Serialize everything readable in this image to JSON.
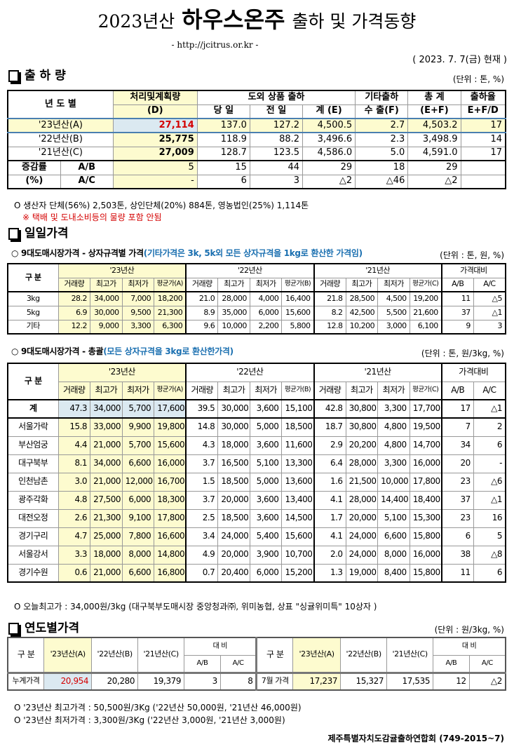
{
  "header": {
    "title_year": "2023년산",
    "title_main": "하우스온주",
    "title_rest": "출하 및 가격동향",
    "url": "- http://jcitrus.or.kr -",
    "date": "( 2023.  7.  7(금) 현재 )"
  },
  "shipment": {
    "section": "출 하 량",
    "unit": "(단위 : 톤, %)",
    "headers": {
      "year": "년 도 별",
      "plan": "처리및계획량",
      "plan_sub": "(D)",
      "outside": "도외 상품 출하",
      "today": "당 일",
      "prev": "전 일",
      "sum": "계 (E)",
      "other": "기타출하",
      "export": "수 출(F)",
      "total": "총   계",
      "total_sub": "(E+F)",
      "rate": "출하율",
      "rate_sub": "E+F/D"
    },
    "rows": [
      [
        "'23년산(A)",
        "27,114",
        "137.0",
        "127.2",
        "4,500.5",
        "2.7",
        "4,503.2",
        "17"
      ],
      [
        "'22년산(B)",
        "25,775",
        "118.9",
        "88.2",
        "3,496.6",
        "2.3",
        "3,498.9",
        "14"
      ],
      [
        "'21년산(C)",
        "27,009",
        "128.7",
        "123.5",
        "4,586.0",
        "5.0",
        "4,591.0",
        "17"
      ]
    ],
    "change_label": "증감률",
    "change_unit": "(%)",
    "change_rows": [
      [
        "A/B",
        "5",
        "15",
        "44",
        "29",
        "18",
        "29",
        ""
      ],
      [
        "A/C",
        "-",
        "6",
        "3",
        "△2",
        "△46",
        "△2",
        ""
      ]
    ],
    "note1": "O 생산자 단체(56%) 2,503톤, 상인단체(20%) 884톤, 영농법인(25%) 1,114톤",
    "note2": "※ 택배 및 도내소비등의 물량 포함 안됨"
  },
  "daily": {
    "section": "일일가격",
    "spec": {
      "title": "○ 9대도매시장가격 - 상자규격별 가격",
      "title_note": "(기타가격은 3k, 5k외 모든 상자규격을 1kg로 환산한 가격임)",
      "unit": "(단위 : 톤, 원, %)",
      "rows": [
        [
          "3kg",
          "28.2",
          "34,000",
          "7,000",
          "18,200",
          "21.0",
          "28,000",
          "4,000",
          "16,400",
          "21.8",
          "28,500",
          "4,500",
          "19,200",
          "11",
          "△5"
        ],
        [
          "5kg",
          "6.9",
          "30,000",
          "9,500",
          "21,300",
          "8.9",
          "35,000",
          "6,000",
          "15,600",
          "8.2",
          "42,500",
          "5,500",
          "21,600",
          "37",
          "△1"
        ],
        [
          "기타",
          "12.2",
          "9,000",
          "3,300",
          "6,300",
          "9.6",
          "10,000",
          "2,200",
          "5,800",
          "12.8",
          "10,200",
          "3,000",
          "6,100",
          "9",
          "3"
        ]
      ]
    },
    "total": {
      "title": "○ 9대도매시장가격 - 총괄",
      "title_note": "(모든 상자규격을 3kg로 환산한가격)",
      "unit": "(단위 : 톤, 원/3kg, %)",
      "rows": [
        [
          "계",
          "47.3",
          "34,000",
          "5,700",
          "17,600",
          "39.5",
          "30,000",
          "3,600",
          "15,100",
          "42.8",
          "30,800",
          "3,300",
          "17,700",
          "17",
          "△1"
        ],
        [
          "서울가락",
          "15.8",
          "33,000",
          "9,900",
          "19,800",
          "14.8",
          "30,000",
          "5,000",
          "18,500",
          "18.7",
          "30,800",
          "4,800",
          "19,500",
          "7",
          "2"
        ],
        [
          "부산엄궁",
          "4.4",
          "21,000",
          "5,700",
          "15,600",
          "4.3",
          "18,000",
          "3,600",
          "11,600",
          "2.9",
          "20,200",
          "4,800",
          "14,700",
          "34",
          "6"
        ],
        [
          "대구북부",
          "8.1",
          "34,000",
          "6,600",
          "16,000",
          "3.7",
          "16,500",
          "5,100",
          "13,300",
          "6.4",
          "28,000",
          "3,300",
          "16,000",
          "20",
          "-"
        ],
        [
          "인천남촌",
          "3.0",
          "21,000",
          "12,000",
          "16,700",
          "1.5",
          "18,500",
          "5,000",
          "13,600",
          "1.6",
          "21,500",
          "10,000",
          "17,800",
          "23",
          "△6"
        ],
        [
          "광주각화",
          "4.8",
          "27,500",
          "6,000",
          "18,300",
          "3.7",
          "20,000",
          "3,600",
          "13,400",
          "4.1",
          "28,000",
          "14,400",
          "18,400",
          "37",
          "△1"
        ],
        [
          "대전오정",
          "2.6",
          "21,300",
          "9,100",
          "17,800",
          "2.5",
          "18,500",
          "3,600",
          "14,500",
          "1.7",
          "20,000",
          "5,100",
          "15,300",
          "23",
          "16"
        ],
        [
          "경기구리",
          "4.7",
          "25,000",
          "7,800",
          "16,600",
          "3.4",
          "24,000",
          "5,400",
          "15,600",
          "4.1",
          "24,000",
          "6,600",
          "15,800",
          "6",
          "5"
        ],
        [
          "서울강서",
          "3.3",
          "18,000",
          "8,000",
          "14,800",
          "4.9",
          "20,000",
          "3,900",
          "10,700",
          "2.0",
          "24,000",
          "8,000",
          "16,000",
          "38",
          "△8"
        ],
        [
          "경기수원",
          "0.6",
          "21,000",
          "6,600",
          "16,800",
          "0.7",
          "20,400",
          "6,000",
          "15,200",
          "1.3",
          "19,000",
          "8,400",
          "15,800",
          "11",
          "6"
        ]
      ],
      "note": "O 오늘최고가 : 34,000원/3kg (대구북부도매시장 중앙청과㈜, 위미농협, 상표 \"싱귤위미특\" 10상자 )"
    },
    "headers": {
      "category": "구  분",
      "y23": "'23년산",
      "y22": "'22년산",
      "y21": "'21년산",
      "compare": "가격대비",
      "vol": "거래량",
      "max": "최고가",
      "min": "최저가",
      "avgA": "평균가(A)",
      "avgB": "평균가(B)",
      "avgC": "평균가(C)",
      "ab": "A/B",
      "ac": "A/C"
    }
  },
  "yearly": {
    "section": "연도별가격",
    "unit": "(단위 : 원/3kg, %)",
    "headers": {
      "category": "구  분",
      "a": "'23년산(A)",
      "b": "'22년산(B)",
      "c": "'21년산(C)",
      "compare": "대    비",
      "ab": "A/B",
      "ac": "A/C"
    },
    "left": [
      "누계가격",
      "20,954",
      "20,280",
      "19,379",
      "3",
      "8"
    ],
    "right": [
      "7월 가격",
      "17,237",
      "15,327",
      "17,535",
      "12",
      "△2"
    ],
    "note1": "O  '23년산 최고가격 : 50,500원/3Kg ('22년산 50,000원, '21년산 46,000원)",
    "note2": "O  '23년산 최저가격 :   3,300원/3Kg ('22년산  3,000원, '21년산  3,000원)"
  },
  "footer": "제주특별자치도감귤출하연합회 (749-2015~7)",
  "colors": {
    "highlight_yellow": "#fdfbcf",
    "highlight_blue": "#dbe9f1",
    "accent_red": "#d40000",
    "note_blue": "#1a6fb0"
  }
}
